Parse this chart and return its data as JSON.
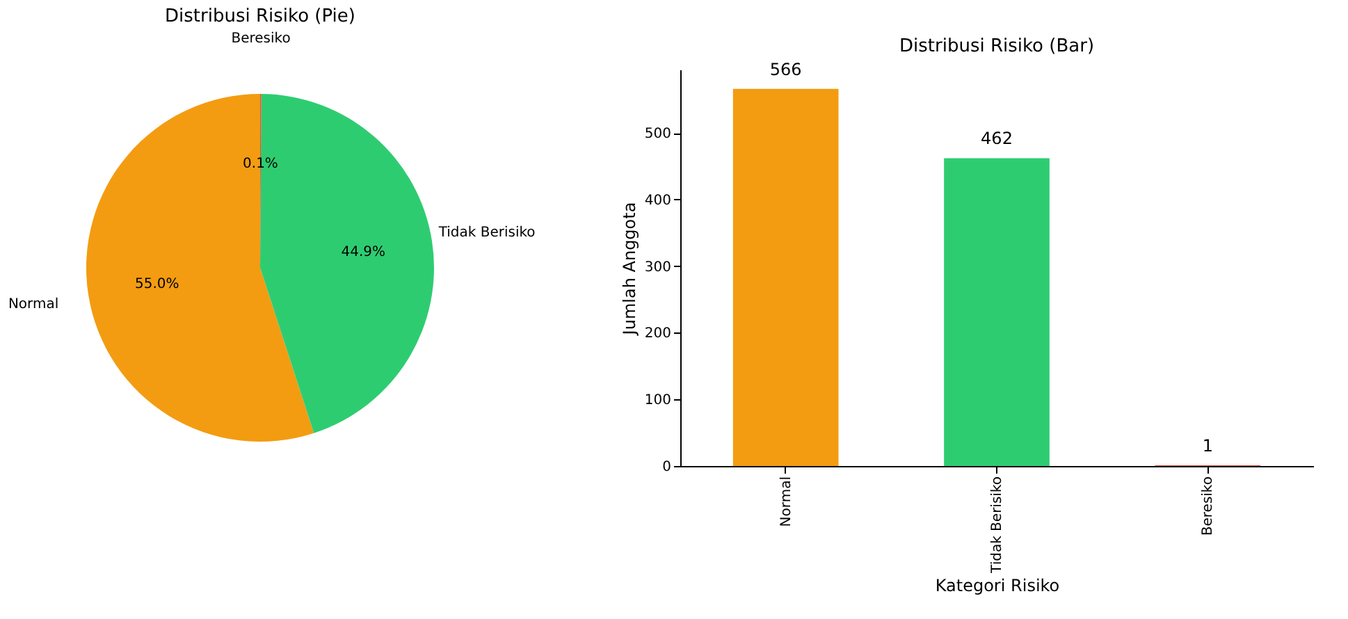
{
  "chart_data": [
    {
      "type": "pie",
      "title": "Distribusi Risiko (Pie)",
      "categories": [
        "Normal",
        "Tidak Berisiko",
        "Beresiko"
      ],
      "values": [
        55.0,
        44.9,
        0.1
      ],
      "colors": [
        "#f39c12",
        "#2ecc71",
        "#e74c3c"
      ],
      "value_labels": [
        "55.0%",
        "44.9%",
        "0.1%"
      ]
    },
    {
      "type": "bar",
      "title": "Distribusi Risiko (Bar)",
      "xlabel": "Kategori Risiko",
      "ylabel": "Jumlah Anggota",
      "categories": [
        "Normal",
        "Tidak Berisiko",
        "Beresiko"
      ],
      "values": [
        566,
        462,
        1
      ],
      "colors": [
        "#f39c12",
        "#2ecc71",
        "#e74c3c"
      ],
      "ylim": [
        0,
        595
      ],
      "yticks": [
        0,
        100,
        200,
        300,
        400,
        500
      ],
      "data_labels": true,
      "grid": false
    }
  ]
}
